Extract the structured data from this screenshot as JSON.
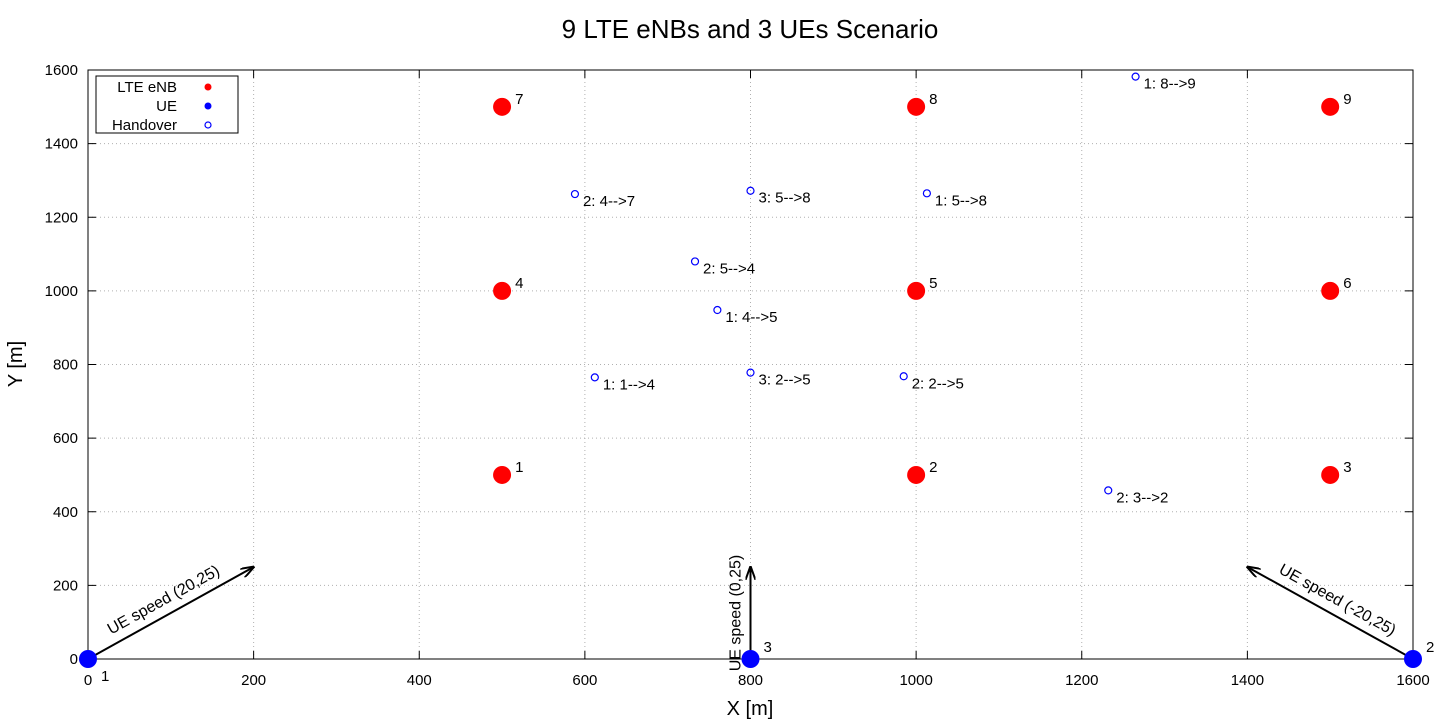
{
  "chart_data": {
    "type": "scatter",
    "title": "9 LTE eNBs and 3 UEs Scenario",
    "xlabel": "X [m]",
    "ylabel": "Y [m]",
    "xlim": [
      0,
      1600
    ],
    "ylim": [
      0,
      1600
    ],
    "xticks": [
      "0",
      "200",
      "400",
      "600",
      "800",
      "1000",
      "1200",
      "1400",
      "1600"
    ],
    "yticks": [
      "0",
      "200",
      "400",
      "600",
      "800",
      "1000",
      "1200",
      "1400",
      "1600"
    ],
    "grid": true,
    "legend": {
      "placement": "top-left",
      "entries": [
        {
          "name": "LTE eNB",
          "color": "#ff0000",
          "marker": "filled-circle"
        },
        {
          "name": "UE",
          "color": "#0000ff",
          "marker": "filled-circle"
        },
        {
          "name": "Handover",
          "color": "#0000ff",
          "marker": "open-circle"
        }
      ]
    },
    "enbs": [
      {
        "label": "1",
        "x": 500,
        "y": 500
      },
      {
        "label": "2",
        "x": 1000,
        "y": 500
      },
      {
        "label": "3",
        "x": 1500,
        "y": 500
      },
      {
        "label": "4",
        "x": 500,
        "y": 1000
      },
      {
        "label": "5",
        "x": 1000,
        "y": 1000
      },
      {
        "label": "6",
        "x": 1500,
        "y": 1000
      },
      {
        "label": "7",
        "x": 500,
        "y": 1500
      },
      {
        "label": "8",
        "x": 1000,
        "y": 1500
      },
      {
        "label": "9",
        "x": 1500,
        "y": 1500
      }
    ],
    "ues": [
      {
        "label": "1",
        "x": 0,
        "y": 0
      },
      {
        "label": "2",
        "x": 1600,
        "y": 0
      },
      {
        "label": "3",
        "x": 800,
        "y": 0
      }
    ],
    "handovers": [
      {
        "label": "1: 8-->9",
        "x": 1265,
        "y": 1582
      },
      {
        "label": "2: 4-->7",
        "x": 588,
        "y": 1263
      },
      {
        "label": "3: 5-->8",
        "x": 800,
        "y": 1272
      },
      {
        "label": "1: 5-->8",
        "x": 1013,
        "y": 1265
      },
      {
        "label": "2: 5-->4",
        "x": 733,
        "y": 1080
      },
      {
        "label": "1: 4-->5",
        "x": 760,
        "y": 948
      },
      {
        "label": "1: 1-->4",
        "x": 612,
        "y": 765
      },
      {
        "label": "3: 2-->5",
        "x": 800,
        "y": 778
      },
      {
        "label": "2: 2-->5",
        "x": 985,
        "y": 768
      },
      {
        "label": "2: 3-->2",
        "x": 1232,
        "y": 458
      }
    ],
    "arrows": [
      {
        "label": "UE speed (20,25)",
        "from": [
          0,
          0
        ],
        "to": [
          200,
          250
        ]
      },
      {
        "label": "UE speed (0,25)",
        "from": [
          800,
          0
        ],
        "to": [
          800,
          250
        ]
      },
      {
        "label": "UE speed (-20,25)",
        "from": [
          1600,
          0
        ],
        "to": [
          1400,
          250
        ]
      }
    ],
    "colors": {
      "enb": "#ff0000",
      "ue": "#0000ff",
      "handover": "#0000ff",
      "grid": "#b0b0b0"
    }
  }
}
